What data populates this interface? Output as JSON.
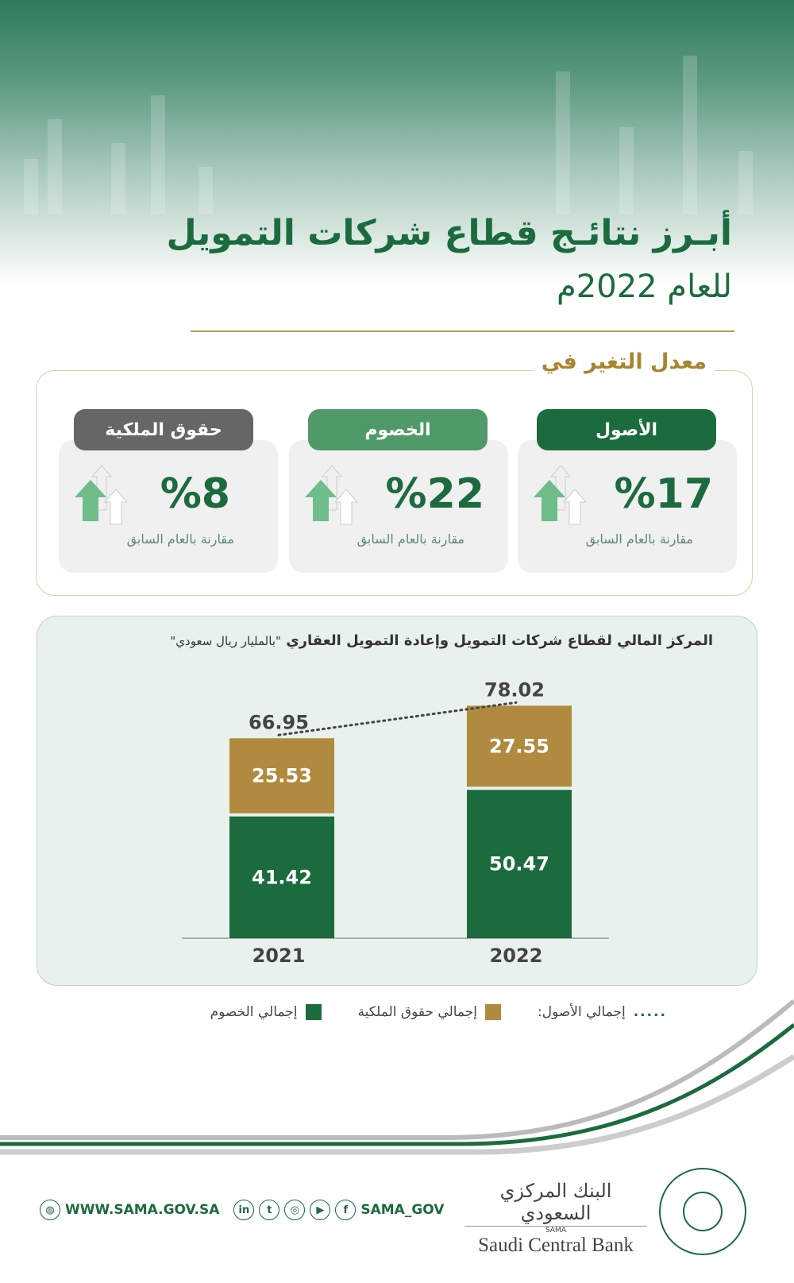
{
  "title": {
    "line1": "أبـرز نتائـج قطاع شركات التمويل",
    "line2": "للعام 2022م"
  },
  "change": {
    "heading": "معدل التغير في",
    "cards": [
      {
        "label": "الأصول",
        "value": "%17",
        "note": "مقارنة بالعام السابق",
        "color": "#1b6b3e"
      },
      {
        "label": "الخصوم",
        "value": "%22",
        "note": "مقارنة بالعام السابق",
        "color": "#4f9a68"
      },
      {
        "label": "حقوق الملكية",
        "value": "%8",
        "note": "مقارنة بالعام السابق",
        "color": "#666666"
      }
    ]
  },
  "chart_data": {
    "type": "bar",
    "stacked": true,
    "title": "المركز المالي لقطاع شركات التمويل وإعادة التمويل العقاري",
    "unit": "\"بالمليار ريال سعودي\"",
    "categories": [
      "2021",
      "2022"
    ],
    "series": [
      {
        "name": "إجمالي الخصوم",
        "values": [
          41.42,
          50.47
        ],
        "color": "#1b6b3e"
      },
      {
        "name": "إجمالي حقوق الملكية",
        "values": [
          25.53,
          27.55
        ],
        "color": "#b08a3e"
      }
    ],
    "line": {
      "name": "إجمالي الأصول:",
      "values": [
        66.95,
        78.02
      ]
    },
    "labels": {
      "liab": [
        "41.42",
        "50.47"
      ],
      "eq": [
        "25.53",
        "27.55"
      ],
      "total": [
        "66.95",
        "78.02"
      ]
    }
  },
  "footer": {
    "website": "WWW.SAMA.GOV.SA",
    "handle": "SAMA_GOV",
    "bank_ar": "البنك المركزي السعودي",
    "bank_abbr": "SAMA",
    "bank_en": "Saudi Central Bank"
  }
}
